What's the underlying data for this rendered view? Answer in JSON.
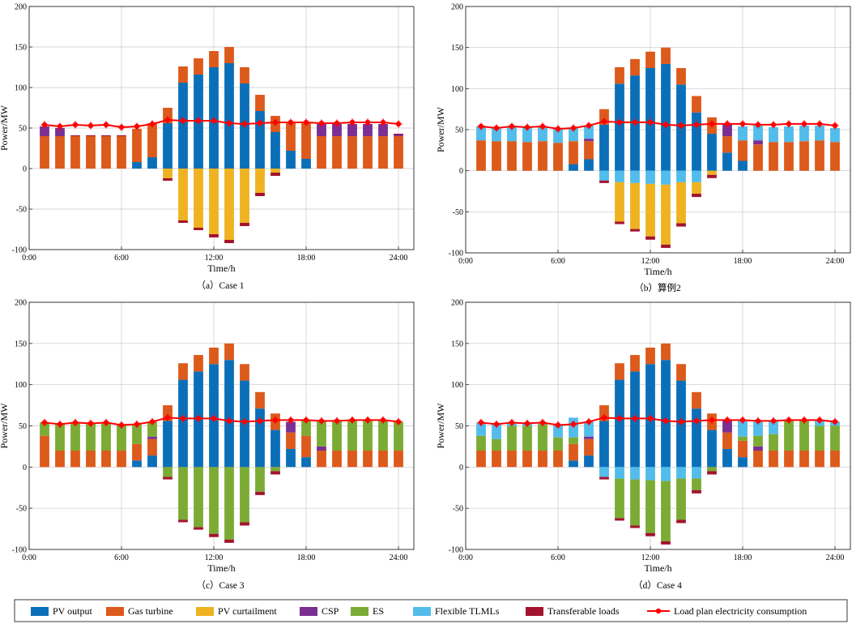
{
  "colors": {
    "pv_output": "#0b6fb8",
    "gas_turbine": "#dc5a1c",
    "pv_curtailment": "#efb221",
    "csp": "#7b2f92",
    "es": "#7bab35",
    "flexible": "#52bceb",
    "transferable": "#a2142e",
    "load_plan": "#ff0000",
    "grid": "#c8c8c8",
    "axis": "#262626"
  },
  "legend": [
    {
      "key": "pv_output",
      "label": "PV output",
      "kind": "box"
    },
    {
      "key": "gas_turbine",
      "label": "Gas turbine",
      "kind": "box"
    },
    {
      "key": "pv_curtailment",
      "label": "PV curtailment",
      "kind": "box"
    },
    {
      "key": "csp",
      "label": "CSP",
      "kind": "box"
    },
    {
      "key": "es",
      "label": "ES",
      "kind": "box"
    },
    {
      "key": "flexible",
      "label": "Flexible TLMLs",
      "kind": "box"
    },
    {
      "key": "transferable",
      "label": "Transferable loads",
      "kind": "box"
    },
    {
      "key": "load_plan",
      "label": "Load plan electricity consumption",
      "kind": "line"
    }
  ],
  "chart_data": [
    {
      "type": "bar",
      "stacked": true,
      "caption": "（a）Case 1",
      "xlabel": "Time/h",
      "ylabel": "Power/MW",
      "ylim": [
        -100,
        200
      ],
      "yticks": [
        -100,
        -50,
        0,
        50,
        100,
        150,
        200
      ],
      "xlim": [
        0,
        25
      ],
      "xticks": [
        {
          "value": 0,
          "label": "0:00"
        },
        {
          "value": 6,
          "label": "6:00"
        },
        {
          "value": 12,
          "label": "12:00"
        },
        {
          "value": 18,
          "label": "18:00"
        },
        {
          "value": 24,
          "label": "24:00"
        }
      ],
      "grid": true,
      "hours": [
        1,
        2,
        3,
        4,
        5,
        6,
        7,
        8,
        9,
        10,
        11,
        12,
        13,
        14,
        15,
        16,
        17,
        18,
        19,
        20,
        21,
        22,
        23,
        24
      ],
      "positive_series": [
        {
          "key": "pv_output",
          "name": "PV output",
          "values": [
            0,
            0,
            0,
            0,
            0,
            0,
            8,
            14,
            56,
            106,
            116,
            125,
            130,
            105,
            71,
            45,
            22,
            12,
            0,
            0,
            0,
            0,
            0,
            0
          ]
        },
        {
          "key": "gas_turbine",
          "name": "Gas turbine",
          "values": [
            40,
            40,
            40,
            40,
            40,
            40,
            41,
            42,
            19,
            20,
            20,
            20,
            20,
            20,
            20,
            20,
            35,
            45,
            40,
            40,
            40,
            40,
            40,
            40
          ]
        },
        {
          "key": "csp",
          "name": "CSP",
          "values": [
            12,
            10,
            0,
            0,
            0,
            0,
            0,
            0,
            0,
            0,
            0,
            0,
            0,
            0,
            0,
            0,
            0,
            0,
            15,
            15,
            15,
            15,
            15,
            2
          ]
        },
        {
          "key": "transferable",
          "name": "Transferable loads",
          "values": [
            0,
            0,
            1,
            1,
            1,
            1,
            0,
            0,
            0,
            0,
            0,
            0,
            0,
            0,
            0,
            0,
            0,
            0,
            0,
            0,
            0,
            0,
            0,
            1
          ]
        }
      ],
      "negative_series": [
        {
          "key": "pv_curtailment",
          "name": "PV curtailment",
          "values": [
            0,
            0,
            0,
            0,
            0,
            0,
            0,
            0,
            -12,
            -64,
            -73,
            -81,
            -88,
            -67,
            -30,
            -5,
            0,
            0,
            0,
            0,
            0,
            0,
            0,
            0
          ]
        },
        {
          "key": "transferable",
          "name": "Transferable loads",
          "values": [
            0,
            0,
            0,
            0,
            0,
            0,
            0,
            0,
            -3,
            -3,
            -3,
            -4,
            -4,
            -4,
            -4,
            -4,
            0,
            0,
            0,
            0,
            0,
            0,
            0,
            0
          ]
        }
      ],
      "load_plan": [
        54,
        52,
        54,
        53,
        54,
        51,
        52,
        55,
        60,
        59,
        59,
        59,
        56,
        55,
        56,
        57,
        57,
        57,
        56,
        56,
        57,
        57,
        57,
        55
      ]
    },
    {
      "type": "bar",
      "stacked": true,
      "caption": "（b）算例2",
      "xlabel": "Time/h",
      "ylabel": "Power/MW",
      "ylim": [
        -100,
        200
      ],
      "yticks": [
        -100,
        -50,
        0,
        50,
        100,
        150,
        200
      ],
      "xlim": [
        0,
        25
      ],
      "xticks": [
        {
          "value": 0,
          "label": "0:00"
        },
        {
          "value": 6,
          "label": "6:00"
        },
        {
          "value": 12,
          "label": "12:00"
        },
        {
          "value": 18,
          "label": "18:00"
        },
        {
          "value": 24,
          "label": "24:00"
        }
      ],
      "grid": true,
      "hours": [
        1,
        2,
        3,
        4,
        5,
        6,
        7,
        8,
        9,
        10,
        11,
        12,
        13,
        14,
        15,
        16,
        17,
        18,
        19,
        20,
        21,
        22,
        23,
        24
      ],
      "positive_series": [
        {
          "key": "pv_output",
          "name": "PV output",
          "values": [
            0,
            0,
            0,
            0,
            0,
            0,
            8,
            14,
            56,
            106,
            116,
            125,
            130,
            105,
            71,
            45,
            22,
            12,
            0,
            0,
            0,
            0,
            0,
            0
          ]
        },
        {
          "key": "gas_turbine",
          "name": "Gas turbine",
          "values": [
            37,
            36,
            36,
            35,
            36,
            34,
            28,
            22,
            19,
            20,
            20,
            20,
            20,
            20,
            20,
            20,
            20,
            25,
            32,
            35,
            35,
            36,
            37,
            35
          ]
        },
        {
          "key": "csp",
          "name": "CSP",
          "values": [
            0,
            0,
            0,
            0,
            0,
            0,
            0,
            3,
            0,
            0,
            0,
            0,
            0,
            0,
            0,
            0,
            15,
            0,
            5,
            0,
            0,
            0,
            0,
            0
          ]
        },
        {
          "key": "flexible",
          "name": "Flexible TLMLs",
          "values": [
            17,
            16,
            18,
            18,
            18,
            17,
            16,
            16,
            0,
            0,
            0,
            0,
            0,
            0,
            0,
            0,
            0,
            17,
            18,
            18,
            19,
            19,
            18,
            17
          ]
        }
      ],
      "negative_series": [
        {
          "key": "flexible",
          "name": "Flexible TLMLs",
          "values": [
            0,
            0,
            0,
            0,
            0,
            0,
            0,
            0,
            -12,
            -14,
            -15,
            -16,
            -17,
            -14,
            -14,
            0,
            0,
            0,
            0,
            0,
            0,
            0,
            0,
            0
          ]
        },
        {
          "key": "pv_curtailment",
          "name": "PV curtailment",
          "values": [
            0,
            0,
            0,
            0,
            0,
            0,
            0,
            0,
            0,
            -48,
            -56,
            -64,
            -73,
            -50,
            -14,
            -5,
            0,
            0,
            0,
            0,
            0,
            0,
            0,
            0
          ]
        },
        {
          "key": "transferable",
          "name": "Transferable loads",
          "values": [
            0,
            0,
            0,
            0,
            0,
            0,
            0,
            0,
            -3,
            -3,
            -3,
            -4,
            -4,
            -4,
            -4,
            -4,
            0,
            0,
            0,
            0,
            0,
            0,
            0,
            0
          ]
        }
      ],
      "load_plan": [
        54,
        52,
        54,
        53,
        54,
        51,
        52,
        55,
        60,
        59,
        59,
        59,
        56,
        55,
        56,
        57,
        57,
        57,
        56,
        56,
        57,
        57,
        57,
        55
      ]
    },
    {
      "type": "bar",
      "stacked": true,
      "caption": "（c）Case 3",
      "xlabel": "Time/h",
      "ylabel": "Power/MW",
      "ylim": [
        -100,
        200
      ],
      "yticks": [
        -100,
        -50,
        0,
        50,
        100,
        150,
        200
      ],
      "xlim": [
        0,
        25
      ],
      "xticks": [
        {
          "value": 0,
          "label": "0:00"
        },
        {
          "value": 6,
          "label": "6:00"
        },
        {
          "value": 12,
          "label": "12:00"
        },
        {
          "value": 18,
          "label": "18:00"
        },
        {
          "value": 24,
          "label": "24:00"
        }
      ],
      "grid": true,
      "hours": [
        1,
        2,
        3,
        4,
        5,
        6,
        7,
        8,
        9,
        10,
        11,
        12,
        13,
        14,
        15,
        16,
        17,
        18,
        19,
        20,
        21,
        22,
        23,
        24
      ],
      "positive_series": [
        {
          "key": "pv_output",
          "name": "PV output",
          "values": [
            0,
            0,
            0,
            0,
            0,
            0,
            8,
            14,
            56,
            106,
            116,
            125,
            130,
            105,
            71,
            45,
            22,
            12,
            0,
            0,
            0,
            0,
            0,
            0
          ]
        },
        {
          "key": "gas_turbine",
          "name": "Gas turbine",
          "values": [
            38,
            20,
            20,
            20,
            20,
            20,
            20,
            20,
            19,
            20,
            20,
            20,
            20,
            20,
            20,
            20,
            20,
            26,
            20,
            20,
            20,
            20,
            20,
            20
          ]
        },
        {
          "key": "csp",
          "name": "CSP",
          "values": [
            0,
            0,
            0,
            0,
            0,
            0,
            0,
            3,
            0,
            0,
            0,
            0,
            0,
            0,
            0,
            0,
            13,
            0,
            5,
            0,
            0,
            0,
            0,
            0
          ]
        },
        {
          "key": "es",
          "name": "ES",
          "values": [
            16,
            32,
            34,
            33,
            34,
            31,
            24,
            18,
            0,
            0,
            0,
            0,
            0,
            0,
            0,
            0,
            0,
            19,
            31,
            36,
            37,
            37,
            37,
            35
          ]
        }
      ],
      "negative_series": [
        {
          "key": "es",
          "name": "ES",
          "values": [
            0,
            0,
            0,
            0,
            0,
            0,
            0,
            0,
            -12,
            -64,
            -73,
            -81,
            -88,
            -67,
            -30,
            -5,
            0,
            0,
            0,
            0,
            0,
            0,
            0,
            0
          ]
        },
        {
          "key": "transferable",
          "name": "Transferable loads",
          "values": [
            0,
            0,
            0,
            0,
            0,
            0,
            0,
            0,
            -3,
            -3,
            -3,
            -4,
            -4,
            -4,
            -4,
            -4,
            0,
            0,
            0,
            0,
            0,
            0,
            0,
            0
          ]
        }
      ],
      "load_plan": [
        54,
        52,
        54,
        53,
        54,
        51,
        52,
        55,
        60,
        59,
        59,
        59,
        56,
        55,
        56,
        57,
        57,
        57,
        56,
        56,
        57,
        57,
        57,
        55
      ]
    },
    {
      "type": "bar",
      "stacked": true,
      "caption": "（d）Case 4",
      "xlabel": "Time/h",
      "ylabel": "Power/MW",
      "ylim": [
        -100,
        200
      ],
      "yticks": [
        -100,
        -50,
        0,
        50,
        100,
        150,
        200
      ],
      "xlim": [
        0,
        25
      ],
      "xticks": [
        {
          "value": 0,
          "label": "0:00"
        },
        {
          "value": 6,
          "label": "6:00"
        },
        {
          "value": 12,
          "label": "12:00"
        },
        {
          "value": 18,
          "label": "18:00"
        },
        {
          "value": 24,
          "label": "24:00"
        }
      ],
      "grid": true,
      "hours": [
        1,
        2,
        3,
        4,
        5,
        6,
        7,
        8,
        9,
        10,
        11,
        12,
        13,
        14,
        15,
        16,
        17,
        18,
        19,
        20,
        21,
        22,
        23,
        24
      ],
      "positive_series": [
        {
          "key": "pv_output",
          "name": "PV output",
          "values": [
            0,
            0,
            0,
            0,
            0,
            0,
            8,
            14,
            56,
            106,
            116,
            125,
            130,
            105,
            71,
            45,
            22,
            12,
            0,
            0,
            0,
            0,
            0,
            0
          ]
        },
        {
          "key": "gas_turbine",
          "name": "Gas turbine",
          "values": [
            20,
            20,
            20,
            20,
            20,
            20,
            20,
            20,
            19,
            20,
            20,
            20,
            20,
            20,
            20,
            20,
            20,
            20,
            20,
            20,
            20,
            20,
            20,
            20
          ]
        },
        {
          "key": "csp",
          "name": "CSP",
          "values": [
            0,
            0,
            0,
            0,
            0,
            0,
            0,
            3,
            0,
            0,
            0,
            0,
            0,
            0,
            0,
            0,
            15,
            0,
            5,
            0,
            0,
            0,
            0,
            0
          ]
        },
        {
          "key": "es",
          "name": "ES",
          "values": [
            18,
            14,
            30,
            30,
            32,
            16,
            8,
            0,
            0,
            0,
            0,
            0,
            0,
            0,
            0,
            0,
            0,
            5,
            13,
            20,
            37,
            37,
            30,
            30
          ]
        },
        {
          "key": "flexible",
          "name": "Flexible TLMLs",
          "values": [
            16,
            18,
            4,
            3,
            2,
            15,
            24,
            18,
            0,
            0,
            0,
            0,
            0,
            0,
            0,
            0,
            0,
            20,
            18,
            16,
            0,
            0,
            7,
            5
          ]
        }
      ],
      "negative_series": [
        {
          "key": "flexible",
          "name": "Flexible TLMLs",
          "values": [
            0,
            0,
            0,
            0,
            0,
            0,
            0,
            0,
            -12,
            -14,
            -15,
            -16,
            -17,
            -14,
            -14,
            0,
            0,
            0,
            0,
            0,
            0,
            0,
            0,
            0
          ]
        },
        {
          "key": "es",
          "name": "ES",
          "values": [
            0,
            0,
            0,
            0,
            0,
            0,
            0,
            0,
            0,
            -48,
            -56,
            -64,
            -73,
            -50,
            -14,
            -5,
            0,
            0,
            0,
            0,
            0,
            0,
            0,
            0
          ]
        },
        {
          "key": "transferable",
          "name": "Transferable loads",
          "values": [
            0,
            0,
            0,
            0,
            0,
            0,
            0,
            0,
            -3,
            -3,
            -3,
            -4,
            -4,
            -4,
            -4,
            -4,
            0,
            0,
            0,
            0,
            0,
            0,
            0,
            0
          ]
        }
      ],
      "load_plan": [
        54,
        52,
        54,
        53,
        54,
        51,
        52,
        55,
        60,
        59,
        59,
        59,
        56,
        55,
        56,
        57,
        57,
        57,
        56,
        56,
        57,
        57,
        57,
        55
      ]
    }
  ]
}
